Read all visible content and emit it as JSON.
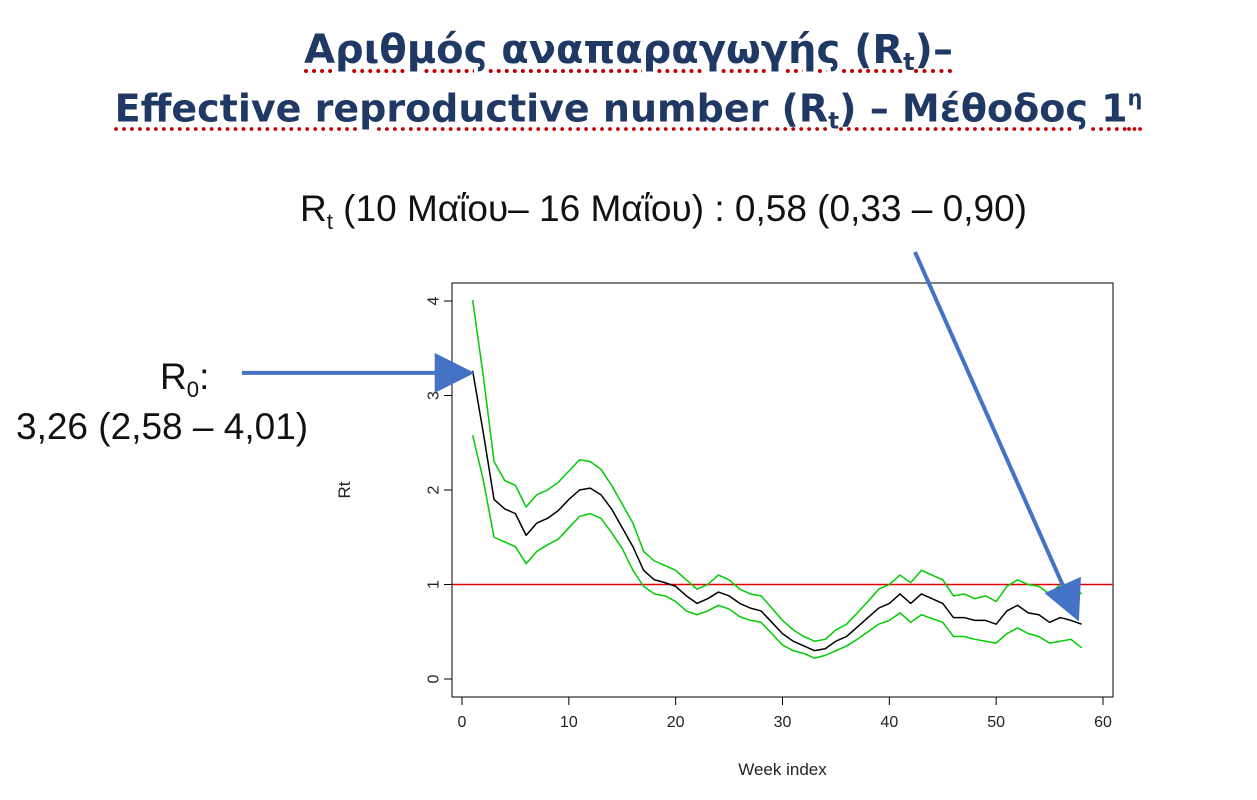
{
  "title": {
    "line1_main": "Αριθμός αναπαραγωγής (R",
    "line1_sub": "t",
    "line1_end": ")–",
    "line2_main": "Effective reproductive number (R",
    "line2_sub": "t",
    "line2_mid": ") – Μέθοδος 1",
    "line2_sup": "η"
  },
  "annotations": {
    "rt_symbol": "R",
    "rt_sub": "t",
    "rt_text": " (10 Μαΐου– 16 Μαΐου) : 0,58 (0,33 – 0,90)",
    "r0_symbol": "R",
    "r0_sub": "0",
    "r0_colon": ":",
    "r0_value": "3,26 (2,58 – 4,01)"
  },
  "colors": {
    "title": "#1f3864",
    "arrow": "#4472c4",
    "estimate": "#000000",
    "ci": "#00cc00",
    "threshold": "#e00000"
  },
  "chart_data": {
    "type": "line",
    "xlabel": "Week index",
    "ylabel": "Rt",
    "xlim": [
      0,
      60
    ],
    "ylim": [
      0,
      4
    ],
    "xticks": [
      0,
      10,
      20,
      30,
      40,
      50,
      60
    ],
    "yticks": [
      0,
      1,
      2,
      3,
      4
    ],
    "threshold": 1,
    "x": [
      1,
      2,
      3,
      4,
      5,
      6,
      7,
      8,
      9,
      10,
      11,
      12,
      13,
      14,
      15,
      16,
      17,
      18,
      19,
      20,
      21,
      22,
      23,
      24,
      25,
      26,
      27,
      28,
      29,
      30,
      31,
      32,
      33,
      34,
      35,
      36,
      37,
      38,
      39,
      40,
      41,
      42,
      43,
      44,
      45,
      46,
      47,
      48,
      49,
      50,
      51,
      52,
      53,
      54,
      55,
      56,
      57,
      58
    ],
    "series": [
      {
        "values": [
          3.26,
          2.6,
          1.9,
          1.8,
          1.75,
          1.52,
          1.65,
          1.7,
          1.78,
          1.9,
          2.0,
          2.02,
          1.95,
          1.8,
          1.6,
          1.4,
          1.15,
          1.05,
          1.02,
          0.98,
          0.88,
          0.8,
          0.85,
          0.92,
          0.88,
          0.8,
          0.75,
          0.72,
          0.6,
          0.48,
          0.4,
          0.35,
          0.3,
          0.32,
          0.4,
          0.45,
          0.55,
          0.65,
          0.75,
          0.8,
          0.9,
          0.8,
          0.9,
          0.85,
          0.8,
          0.65,
          0.65,
          0.62,
          0.62,
          0.58,
          0.72,
          0.78,
          0.7,
          0.68,
          0.6,
          0.65,
          0.62,
          0.58
        ]
      },
      {
        "values": [
          4.01,
          3.2,
          2.3,
          2.1,
          2.05,
          1.82,
          1.95,
          2.0,
          2.08,
          2.2,
          2.32,
          2.3,
          2.22,
          2.05,
          1.85,
          1.65,
          1.35,
          1.25,
          1.2,
          1.15,
          1.05,
          0.95,
          1.0,
          1.1,
          1.05,
          0.95,
          0.9,
          0.88,
          0.75,
          0.62,
          0.52,
          0.45,
          0.4,
          0.42,
          0.52,
          0.58,
          0.7,
          0.82,
          0.95,
          1.0,
          1.1,
          1.02,
          1.15,
          1.1,
          1.05,
          0.88,
          0.9,
          0.85,
          0.88,
          0.82,
          0.98,
          1.05,
          1.0,
          0.98,
          0.9,
          1.0,
          1.0,
          0.9
        ]
      },
      {
        "values": [
          2.58,
          2.1,
          1.5,
          1.45,
          1.4,
          1.22,
          1.35,
          1.42,
          1.48,
          1.6,
          1.72,
          1.75,
          1.7,
          1.55,
          1.38,
          1.15,
          0.98,
          0.9,
          0.88,
          0.82,
          0.72,
          0.68,
          0.72,
          0.78,
          0.74,
          0.66,
          0.62,
          0.6,
          0.48,
          0.36,
          0.3,
          0.27,
          0.22,
          0.25,
          0.3,
          0.35,
          0.42,
          0.5,
          0.58,
          0.62,
          0.7,
          0.6,
          0.68,
          0.64,
          0.6,
          0.45,
          0.45,
          0.42,
          0.4,
          0.38,
          0.48,
          0.54,
          0.48,
          0.45,
          0.38,
          0.4,
          0.42,
          0.33
        ]
      }
    ]
  }
}
